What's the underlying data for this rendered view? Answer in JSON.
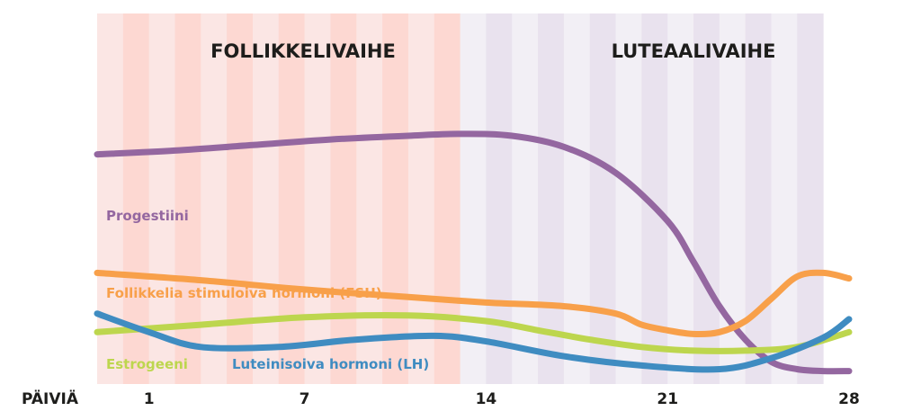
{
  "chart_data": {
    "type": "line",
    "phases": [
      {
        "name": "FOLLIKKELIVAIHE",
        "from": 0,
        "to": 14,
        "colors": [
          "#fbe6e4",
          "#fdd8d2"
        ]
      },
      {
        "name": "LUTEAALIVAIHE",
        "from": 14,
        "to": 28,
        "colors": [
          "#f2eff5",
          "#e9e2ee"
        ]
      }
    ],
    "axis": {
      "label": "PÄIVIÄ",
      "xlim": [
        -1,
        28
      ],
      "ticks": [
        {
          "value": 1,
          "label": "1"
        },
        {
          "value": 7,
          "label": "7"
        },
        {
          "value": 14,
          "label": "14"
        },
        {
          "value": 21,
          "label": "21"
        },
        {
          "value": 28,
          "label": "28"
        }
      ]
    },
    "ylim": [
      0,
      100
    ],
    "grid": false,
    "legend": "inline",
    "series": [
      {
        "name": "Progestiini",
        "color": "#9467a0",
        "points": [
          [
            -1,
            62
          ],
          [
            2,
            63
          ],
          [
            5,
            64.5
          ],
          [
            8,
            66
          ],
          [
            11,
            67
          ],
          [
            13,
            67.5
          ],
          [
            15,
            67
          ],
          [
            17,
            64
          ],
          [
            19,
            57
          ],
          [
            21,
            44
          ],
          [
            22,
            33
          ],
          [
            23,
            21
          ],
          [
            24,
            12
          ],
          [
            25,
            6
          ],
          [
            26,
            4
          ],
          [
            27,
            3.5
          ],
          [
            28,
            3.5
          ]
        ]
      },
      {
        "name": "Follikkelia stimuloiva hormoni (FSH)",
        "color": "#f8a04a",
        "points": [
          [
            -1,
            30
          ],
          [
            3,
            28
          ],
          [
            7,
            25.5
          ],
          [
            11,
            23.5
          ],
          [
            14,
            22
          ],
          [
            17,
            21
          ],
          [
            19,
            19
          ],
          [
            20,
            16
          ],
          [
            21,
            14.5
          ],
          [
            22,
            13.5
          ],
          [
            23,
            14
          ],
          [
            24,
            17
          ],
          [
            25,
            23
          ],
          [
            26,
            29
          ],
          [
            27,
            30
          ],
          [
            28,
            28.5
          ]
        ]
      },
      {
        "name": "Estrogeeni",
        "color": "#bdd64e",
        "points": [
          [
            -1,
            14
          ],
          [
            3,
            16
          ],
          [
            7,
            18
          ],
          [
            11,
            18.5
          ],
          [
            14,
            17
          ],
          [
            16,
            14.5
          ],
          [
            18,
            12
          ],
          [
            20,
            10
          ],
          [
            22,
            9
          ],
          [
            24,
            9
          ],
          [
            26,
            10
          ],
          [
            28,
            14
          ]
        ]
      },
      {
        "name": "Luteinisoiva hormoni (LH)",
        "color": "#3f8cc1",
        "points": [
          [
            -1,
            19
          ],
          [
            1,
            14
          ],
          [
            3,
            10
          ],
          [
            6,
            10
          ],
          [
            9,
            12
          ],
          [
            12,
            13
          ],
          [
            14,
            11.5
          ],
          [
            17,
            7.5
          ],
          [
            20,
            5
          ],
          [
            23,
            4
          ],
          [
            25,
            7
          ],
          [
            27,
            12.5
          ],
          [
            28,
            17.5
          ]
        ]
      }
    ],
    "series_labels": [
      "Progestiini",
      "Follikkelia stimuloiva hormoni (FSH)",
      "Estrogeeni",
      "Luteinisoiva hormoni (LH)"
    ]
  }
}
